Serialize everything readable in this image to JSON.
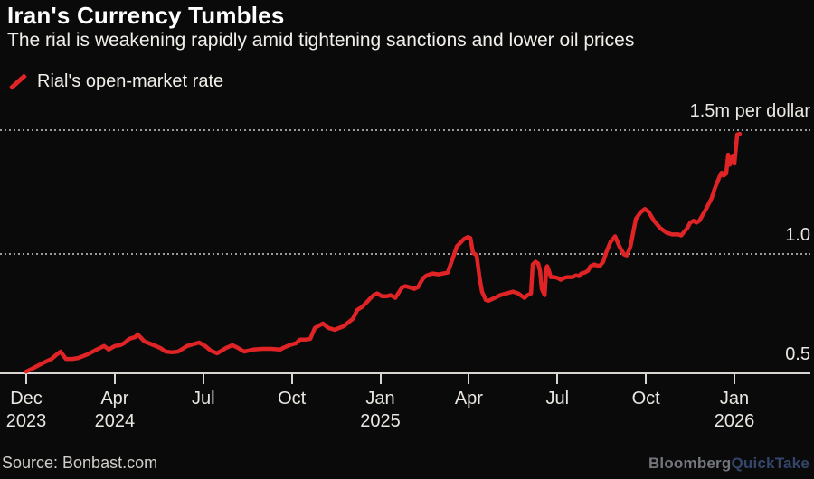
{
  "header": {
    "title": "Iran's Currency Tumbles",
    "subtitle": "The rial is weakening rapidly amid tightening sanctions and lower oil prices"
  },
  "legend": {
    "label": "Rial's open-market rate"
  },
  "footer": {
    "source": "Source: Bonbast.com",
    "logo_primary": "Bloomberg",
    "logo_secondary": "QuickTake"
  },
  "colors": {
    "background": "#0a0a0a",
    "line": "#e02426",
    "gridline": "#9a9a9a",
    "axis": "#d8d5d0",
    "title_text": "#ffffff",
    "body_text": "#f2efea",
    "logo_bloomberg": "#73767b",
    "logo_quicktake": "#34466b"
  },
  "chart_data": {
    "type": "line",
    "title": "Iran's Currency Tumbles",
    "series_name": "Rial's open-market rate",
    "unit": "million rials per US dollar",
    "x_unit": "months since Dec 2023",
    "xlim": [
      0,
      25
    ],
    "ylim": [
      0.5,
      1.5
    ],
    "grid": "dotted horizontal at 1.0 and 1.5, solid axis at 0.5",
    "legend_position": "top-left",
    "y_gridlines": [
      {
        "value": 1.5,
        "label": "1.5m per dollar"
      },
      {
        "value": 1.0,
        "label": "1.0"
      },
      {
        "value": 0.5,
        "label": "0.5"
      }
    ],
    "x_ticks": [
      {
        "month": "Dec",
        "year": "2023"
      },
      {
        "month": "Apr",
        "year": "2024"
      },
      {
        "month": "Jul",
        "year": ""
      },
      {
        "month": "Oct",
        "year": ""
      },
      {
        "month": "Jan",
        "year": "2025"
      },
      {
        "month": "Apr",
        "year": ""
      },
      {
        "month": "Jul",
        "year": ""
      },
      {
        "month": "Oct",
        "year": ""
      },
      {
        "month": "Jan",
        "year": "2026"
      }
    ],
    "points": [
      [
        0,
        0.507
      ],
      [
        0.26,
        0.522
      ],
      [
        0.57,
        0.541
      ],
      [
        0.89,
        0.559
      ],
      [
        1.09,
        0.578
      ],
      [
        1.21,
        0.589
      ],
      [
        1.4,
        0.559
      ],
      [
        1.63,
        0.559
      ],
      [
        1.85,
        0.563
      ],
      [
        2.17,
        0.578
      ],
      [
        2.49,
        0.597
      ],
      [
        2.75,
        0.612
      ],
      [
        2.91,
        0.597
      ],
      [
        3.13,
        0.612
      ],
      [
        3.32,
        0.615
      ],
      [
        3.45,
        0.623
      ],
      [
        3.64,
        0.641
      ],
      [
        3.86,
        0.649
      ],
      [
        3.93,
        0.66
      ],
      [
        4.18,
        0.63
      ],
      [
        4.5,
        0.615
      ],
      [
        4.73,
        0.604
      ],
      [
        4.92,
        0.589
      ],
      [
        5.14,
        0.586
      ],
      [
        5.36,
        0.589
      ],
      [
        5.68,
        0.612
      ],
      [
        6.1,
        0.626
      ],
      [
        6.32,
        0.612
      ],
      [
        6.51,
        0.593
      ],
      [
        6.74,
        0.582
      ],
      [
        7.06,
        0.604
      ],
      [
        7.28,
        0.615
      ],
      [
        7.47,
        0.604
      ],
      [
        7.69,
        0.589
      ],
      [
        8.01,
        0.597
      ],
      [
        8.33,
        0.6
      ],
      [
        8.65,
        0.6
      ],
      [
        8.97,
        0.597
      ],
      [
        9.07,
        0.604
      ],
      [
        9.29,
        0.615
      ],
      [
        9.52,
        0.623
      ],
      [
        9.67,
        0.638
      ],
      [
        9.87,
        0.638
      ],
      [
        10.03,
        0.641
      ],
      [
        10.19,
        0.686
      ],
      [
        10.47,
        0.704
      ],
      [
        10.66,
        0.686
      ],
      [
        10.89,
        0.678
      ],
      [
        11.21,
        0.693
      ],
      [
        11.53,
        0.723
      ],
      [
        11.69,
        0.76
      ],
      [
        11.85,
        0.771
      ],
      [
        12.01,
        0.79
      ],
      [
        12.16,
        0.809
      ],
      [
        12.26,
        0.82
      ],
      [
        12.39,
        0.827
      ],
      [
        12.55,
        0.816
      ],
      [
        12.74,
        0.816
      ],
      [
        12.87,
        0.82
      ],
      [
        13.03,
        0.809
      ],
      [
        13.19,
        0.838
      ],
      [
        13.28,
        0.853
      ],
      [
        13.38,
        0.857
      ],
      [
        13.51,
        0.853
      ],
      [
        13.7,
        0.846
      ],
      [
        13.83,
        0.853
      ],
      [
        13.92,
        0.872
      ],
      [
        14.02,
        0.89
      ],
      [
        14.14,
        0.901
      ],
      [
        14.34,
        0.909
      ],
      [
        14.56,
        0.905
      ],
      [
        14.72,
        0.909
      ],
      [
        14.88,
        0.913
      ],
      [
        15.04,
        0.965
      ],
      [
        15.2,
        1.02
      ],
      [
        15.45,
        1.05
      ],
      [
        15.58,
        1.058
      ],
      [
        15.68,
        1.054
      ],
      [
        15.77,
        0.994
      ],
      [
        15.9,
        0.983
      ],
      [
        16,
        0.894
      ],
      [
        16.09,
        0.835
      ],
      [
        16.22,
        0.801
      ],
      [
        16.32,
        0.797
      ],
      [
        16.54,
        0.809
      ],
      [
        16.73,
        0.82
      ],
      [
        16.95,
        0.827
      ],
      [
        17.18,
        0.835
      ],
      [
        17.37,
        0.827
      ],
      [
        17.5,
        0.816
      ],
      [
        17.59,
        0.809
      ],
      [
        17.69,
        0.82
      ],
      [
        17.82,
        0.827
      ],
      [
        17.88,
        0.946
      ],
      [
        17.98,
        0.957
      ],
      [
        18.07,
        0.95
      ],
      [
        18.14,
        0.92
      ],
      [
        18.2,
        0.846
      ],
      [
        18.3,
        0.82
      ],
      [
        18.36,
        0.931
      ],
      [
        18.39,
        0.939
      ],
      [
        18.45,
        0.92
      ],
      [
        18.52,
        0.894
      ],
      [
        18.65,
        0.894
      ],
      [
        18.77,
        0.89
      ],
      [
        18.87,
        0.883
      ],
      [
        18.97,
        0.89
      ],
      [
        19.09,
        0.894
      ],
      [
        19.28,
        0.894
      ],
      [
        19.41,
        0.901
      ],
      [
        19.51,
        0.898
      ],
      [
        19.6,
        0.909
      ],
      [
        19.73,
        0.913
      ],
      [
        19.83,
        0.92
      ],
      [
        19.92,
        0.939
      ],
      [
        20.05,
        0.946
      ],
      [
        20.15,
        0.942
      ],
      [
        20.24,
        0.939
      ],
      [
        20.37,
        0.957
      ],
      [
        20.47,
        0.994
      ],
      [
        20.63,
        1.039
      ],
      [
        20.79,
        1.061
      ],
      [
        20.94,
        1.02
      ],
      [
        21.1,
        0.987
      ],
      [
        21.2,
        0.983
      ],
      [
        21.33,
        1.02
      ],
      [
        21.52,
        1.132
      ],
      [
        21.68,
        1.158
      ],
      [
        21.84,
        1.173
      ],
      [
        21.97,
        1.162
      ],
      [
        22.16,
        1.125
      ],
      [
        22.38,
        1.095
      ],
      [
        22.61,
        1.076
      ],
      [
        22.8,
        1.069
      ],
      [
        23.02,
        1.069
      ],
      [
        23.12,
        1.065
      ],
      [
        23.34,
        1.095
      ],
      [
        23.44,
        1.117
      ],
      [
        23.56,
        1.125
      ],
      [
        23.66,
        1.117
      ],
      [
        23.76,
        1.125
      ],
      [
        23.98,
        1.169
      ],
      [
        24.2,
        1.218
      ],
      [
        24.3,
        1.255
      ],
      [
        24.39,
        1.281
      ],
      [
        24.52,
        1.318
      ],
      [
        24.55,
        1.322
      ],
      [
        24.62,
        1.31
      ],
      [
        24.71,
        1.318
      ],
      [
        24.78,
        1.396
      ],
      [
        24.84,
        1.355
      ],
      [
        24.94,
        1.392
      ],
      [
        25,
        1.359
      ],
      [
        25.1,
        1.478
      ],
      [
        25.19,
        1.481
      ]
    ]
  }
}
